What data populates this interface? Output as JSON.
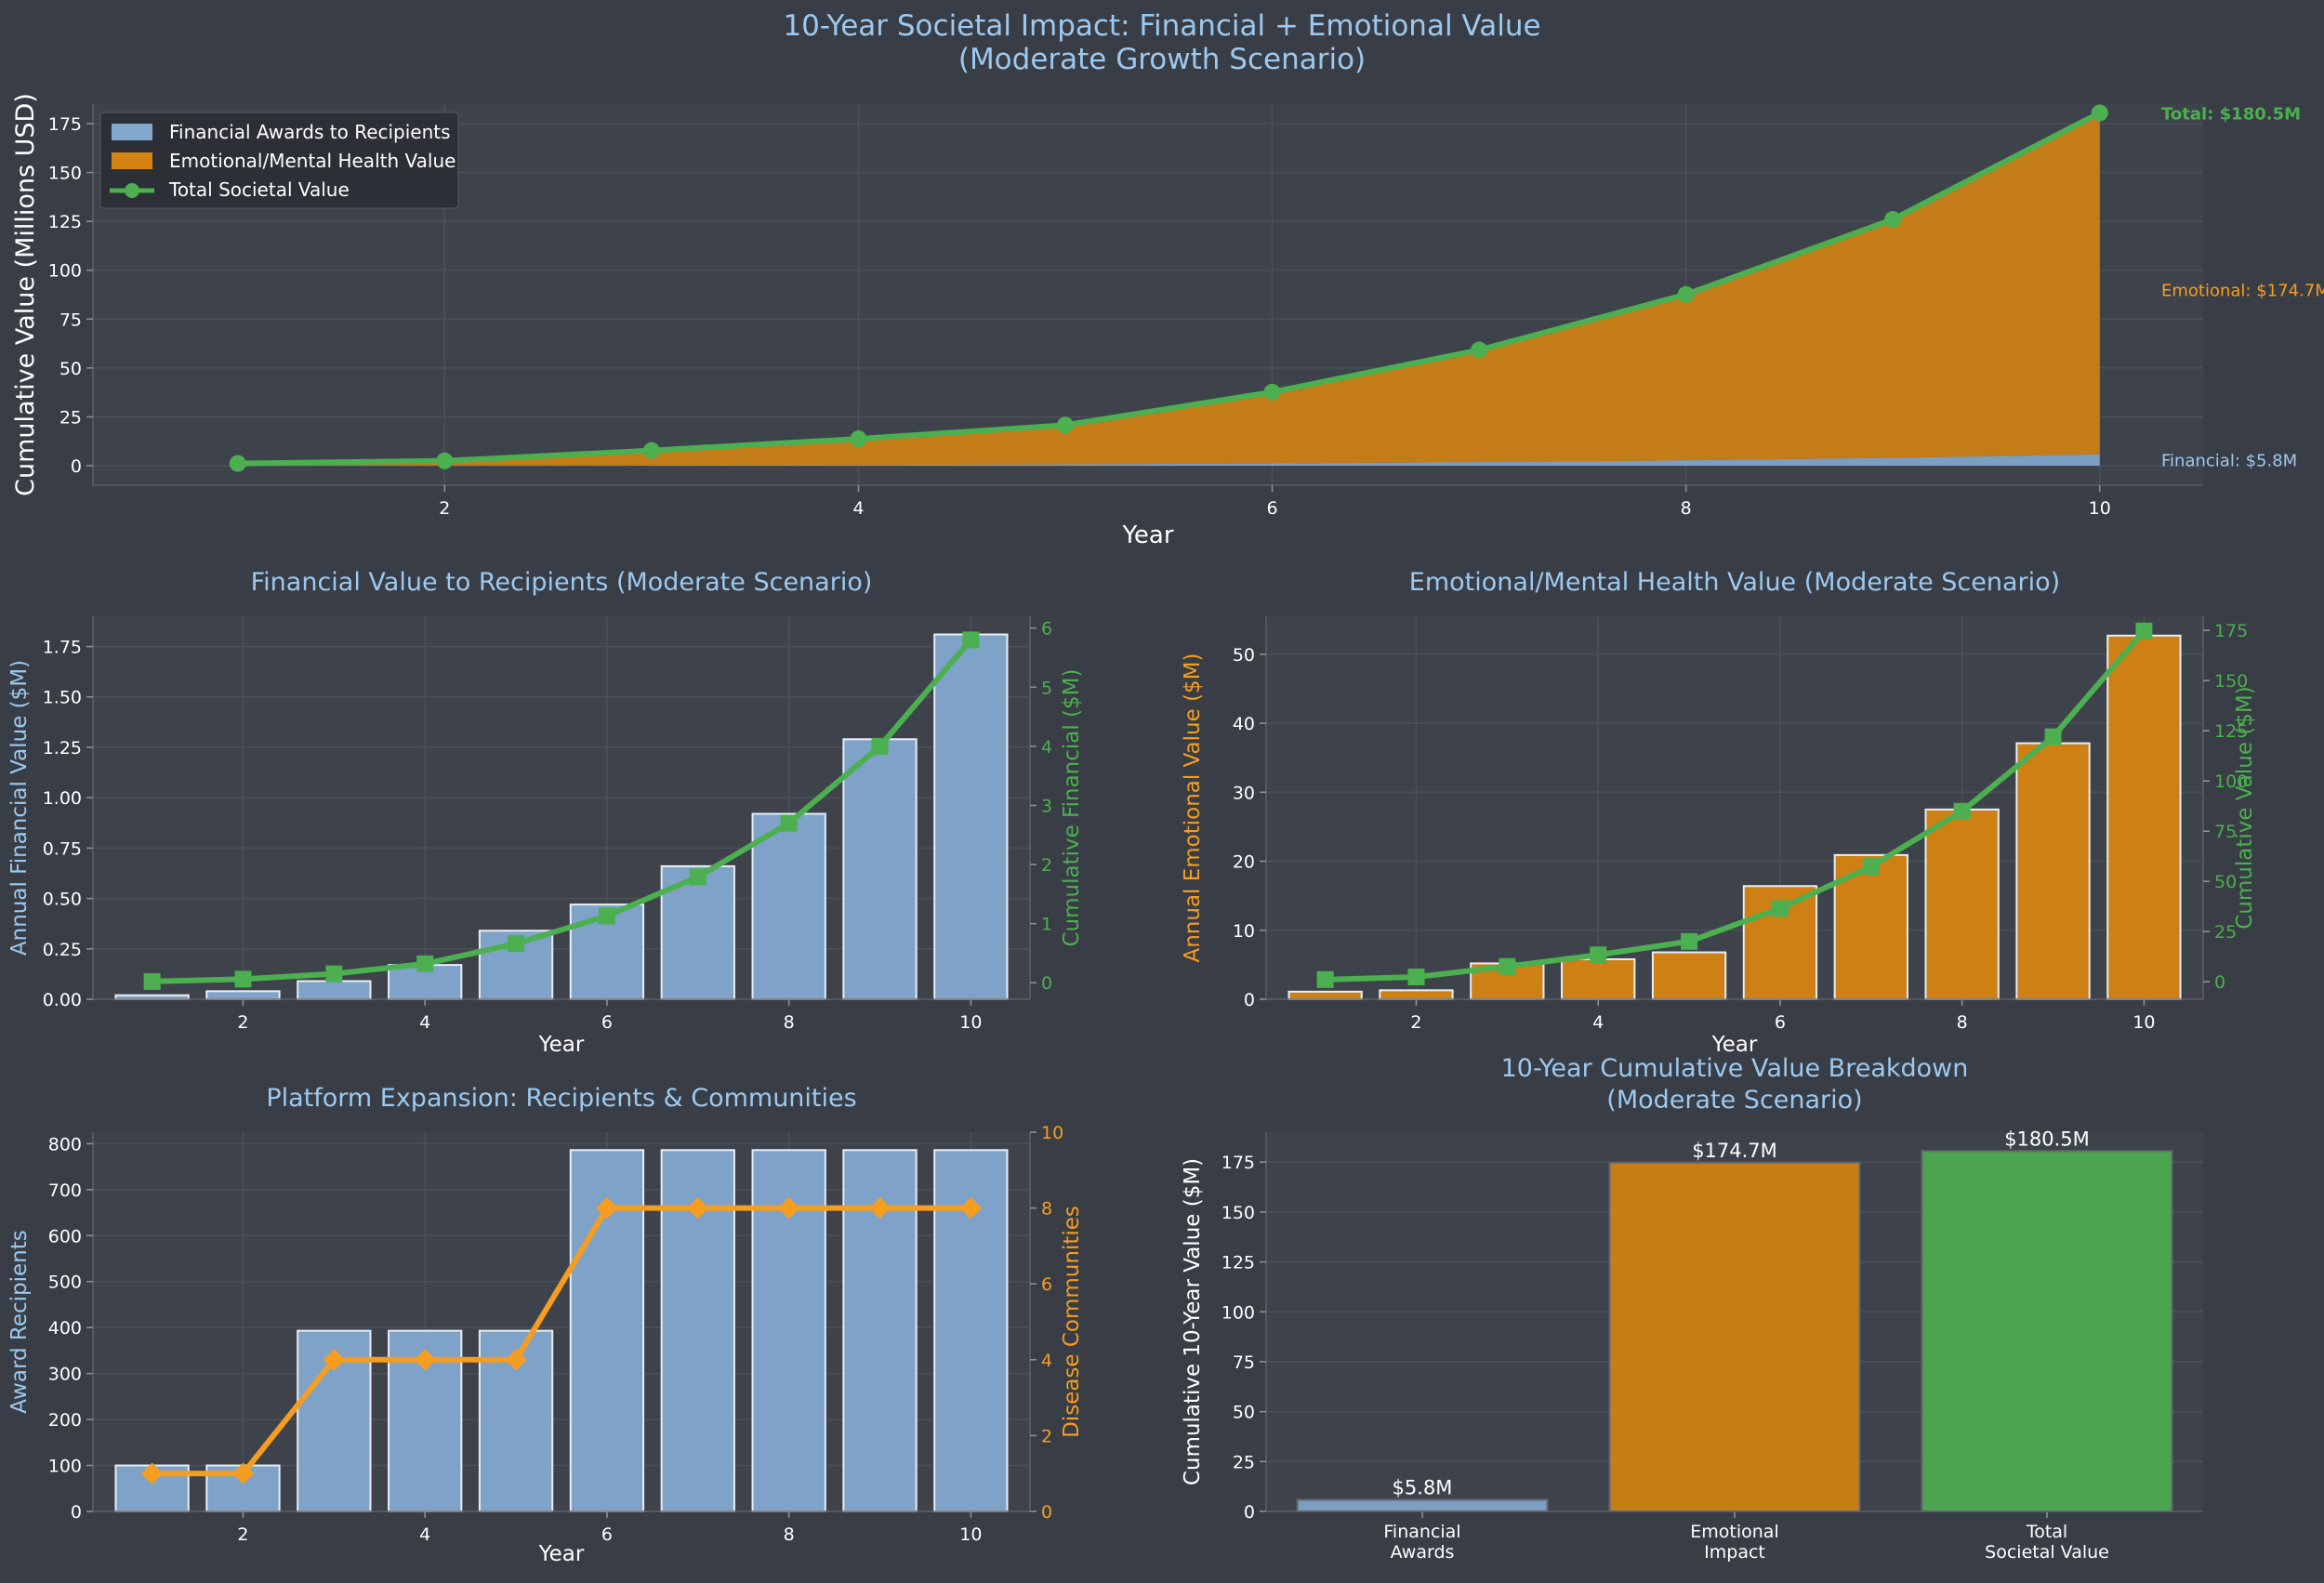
{
  "suptitle": [
    "10-Year Societal Impact: Financial + Emotional Value",
    "(Moderate Growth Scenario)"
  ],
  "colors": {
    "financial": "#83a8cf",
    "emotional": "#d68411",
    "total": "#4caf50",
    "communities": "#f59d20",
    "title": "#9cc9f0"
  },
  "chart_data": [
    {
      "id": "top",
      "type": "area",
      "title": "",
      "xlabel": "Year",
      "ylabel": "Cumulative Value (Millions USD)",
      "xlim": [
        0.3,
        10.5
      ],
      "ylim": [
        -10,
        185
      ],
      "x_ticks": [
        2,
        4,
        6,
        8,
        10
      ],
      "y_ticks": [
        0,
        25,
        50,
        75,
        100,
        125,
        150,
        175
      ],
      "x": [
        1,
        2,
        3,
        4,
        5,
        6,
        7,
        8,
        9,
        10
      ],
      "series": [
        {
          "name": "Financial Awards to Recipients",
          "kind": "area",
          "values": [
            0.02,
            0.06,
            0.15,
            0.32,
            0.66,
            1.13,
            1.79,
            2.7,
            4.0,
            5.8
          ]
        },
        {
          "name": "Emotional/Mental Health Value",
          "kind": "area-stacked",
          "values": [
            1.1,
            2.4,
            7.6,
            13.4,
            20.1,
            36.5,
            57.4,
            84.9,
            122.0,
            174.7
          ]
        },
        {
          "name": "Total Societal Value",
          "kind": "line",
          "values": [
            1.12,
            2.46,
            7.75,
            13.72,
            20.76,
            37.63,
            59.19,
            87.6,
            126.0,
            180.5
          ]
        }
      ],
      "legend": "top-left",
      "annotations": {
        "total": "Total: $180.5M",
        "emotional": "Emotional: $174.7M",
        "financial": "Financial: $5.8M"
      },
      "annotation_values": {
        "total": 180.5,
        "emotional": 90,
        "financial": 3
      }
    },
    {
      "id": "financial",
      "type": "bar",
      "title": "Financial Value to Recipients (Moderate Scenario)",
      "xlabel": "Year",
      "ylabel": "Annual Financial Value ($M)",
      "ylabel_right": "Cumulative Financial ($M)",
      "xlim": [
        0.35,
        10.65
      ],
      "ylim": [
        0,
        1.9
      ],
      "ylim_right": [
        -0.28,
        6.2
      ],
      "x_ticks": [
        2,
        4,
        6,
        8,
        10
      ],
      "y_ticks": [
        "0.00",
        "0.25",
        "0.50",
        "0.75",
        "1.00",
        "1.25",
        "1.50",
        "1.75"
      ],
      "y_ticks_right": [
        0,
        1,
        2,
        3,
        4,
        5,
        6
      ],
      "x": [
        1,
        2,
        3,
        4,
        5,
        6,
        7,
        8,
        9,
        10
      ],
      "series": [
        {
          "name": "Annual Financial Value",
          "kind": "bar",
          "values": [
            0.02,
            0.04,
            0.09,
            0.17,
            0.34,
            0.47,
            0.66,
            0.92,
            1.29,
            1.81
          ]
        },
        {
          "name": "Cumulative Financial",
          "kind": "line",
          "values": [
            0.02,
            0.06,
            0.15,
            0.32,
            0.66,
            1.13,
            1.79,
            2.7,
            4.0,
            5.8
          ]
        }
      ]
    },
    {
      "id": "emotional",
      "type": "bar",
      "title": "Emotional/Mental Health Value (Moderate Scenario)",
      "xlabel": "Year",
      "ylabel": "Annual Emotional Value ($M)",
      "ylabel_right": "Cumulative Value ($M)",
      "xlim": [
        0.35,
        10.65
      ],
      "ylim": [
        0,
        55.5
      ],
      "ylim_right": [
        -8.7,
        182
      ],
      "x_ticks": [
        2,
        4,
        6,
        8,
        10
      ],
      "y_ticks": [
        0,
        10,
        20,
        30,
        40,
        50
      ],
      "y_ticks_right": [
        0,
        25,
        50,
        75,
        100,
        125,
        150,
        175
      ],
      "x": [
        1,
        2,
        3,
        4,
        5,
        6,
        7,
        8,
        9,
        10
      ],
      "series": [
        {
          "name": "Annual Emotional Value",
          "kind": "bar",
          "values": [
            1.1,
            1.3,
            5.2,
            5.8,
            6.8,
            16.4,
            20.9,
            27.5,
            37.1,
            52.7
          ]
        },
        {
          "name": "Cumulative Value",
          "kind": "line",
          "values": [
            1.1,
            2.4,
            7.6,
            13.4,
            20.1,
            36.5,
            57.4,
            84.9,
            122.0,
            174.7
          ]
        }
      ]
    },
    {
      "id": "platform",
      "type": "bar",
      "title": "Platform Expansion: Recipients & Communities",
      "xlabel": "Year",
      "ylabel": "Award Recipients",
      "ylabel_right": "Disease Communities",
      "xlim": [
        0.35,
        10.65
      ],
      "ylim": [
        0,
        825
      ],
      "ylim_right": [
        0,
        10
      ],
      "x_ticks": [
        2,
        4,
        6,
        8,
        10
      ],
      "y_ticks": [
        0,
        100,
        200,
        300,
        400,
        500,
        600,
        700,
        800
      ],
      "y_ticks_right": [
        0,
        2,
        4,
        6,
        8,
        10
      ],
      "x": [
        1,
        2,
        3,
        4,
        5,
        6,
        7,
        8,
        9,
        10
      ],
      "series": [
        {
          "name": "Award Recipients",
          "kind": "bar",
          "values": [
            100,
            100,
            393,
            393,
            393,
            786,
            786,
            786,
            786,
            786
          ]
        },
        {
          "name": "Disease Communities",
          "kind": "line",
          "values": [
            1,
            1,
            4,
            4,
            4,
            8,
            8,
            8,
            8,
            8
          ]
        }
      ]
    },
    {
      "id": "breakdown",
      "type": "bar",
      "title": "10-Year Cumulative Value Breakdown\n(Moderate Scenario)",
      "xlabel": "",
      "ylabel": "Cumulative 10-Year Value ($M)",
      "ylim": [
        0,
        190
      ],
      "y_ticks": [
        0,
        25,
        50,
        75,
        100,
        125,
        150,
        175
      ],
      "categories": [
        "Financial\nAwards",
        "Emotional\nImpact",
        "Total\nSocietal Value"
      ],
      "values": [
        5.8,
        174.7,
        180.5
      ],
      "data_labels": [
        "$5.8M",
        "$174.7M",
        "$180.5M"
      ]
    }
  ]
}
